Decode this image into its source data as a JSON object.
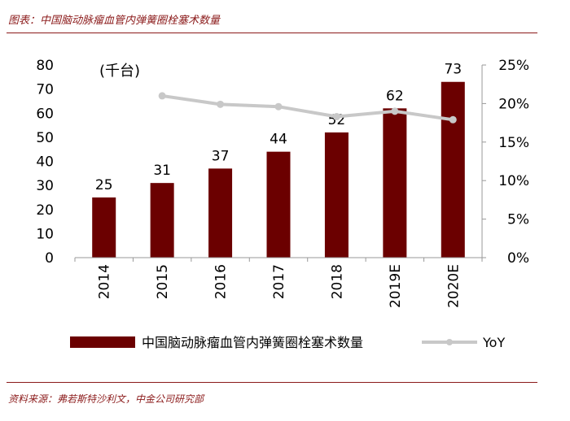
{
  "figure": {
    "title": "图表：中国脑动脉瘤血管内弹簧圈栓塞术数量",
    "source": "资料来源：弗若斯特沙利文，中金公司研究部"
  },
  "colors": {
    "bar": "#6B0000",
    "line": "#C8C8C8",
    "accent": "#8B1A1A"
  },
  "chart_data": {
    "type": "bar",
    "title": "中国脑动脉瘤血管内弹簧圈栓塞术数量",
    "unit_label": "(千台)",
    "categories": [
      "2014",
      "2015",
      "2016",
      "2017",
      "2018",
      "2019E",
      "2020E"
    ],
    "series": [
      {
        "name": "中国脑动脉瘤血管内弹簧圈栓塞术数量",
        "type": "bar",
        "axis": "left",
        "values": [
          25,
          31,
          37,
          44,
          52,
          62,
          73
        ],
        "labels": [
          "25",
          "31",
          "37",
          "44",
          "52",
          "62",
          "73"
        ]
      },
      {
        "name": "YoY",
        "type": "line",
        "axis": "right",
        "values": [
          null,
          0.21,
          0.199,
          0.196,
          0.183,
          0.19,
          0.179
        ]
      }
    ],
    "left_axis": {
      "ylim": [
        0,
        80
      ],
      "ticks": [
        "0",
        "10",
        "20",
        "30",
        "40",
        "50",
        "60",
        "70",
        "80"
      ]
    },
    "right_axis": {
      "ylim": [
        0,
        0.25
      ],
      "ticks": [
        "0%",
        "5%",
        "10%",
        "15%",
        "20%",
        "25%"
      ]
    },
    "legend": [
      "中国脑动脉瘤血管内弹簧圈栓塞术数量",
      "YoY"
    ],
    "legend_position": "bottom"
  }
}
